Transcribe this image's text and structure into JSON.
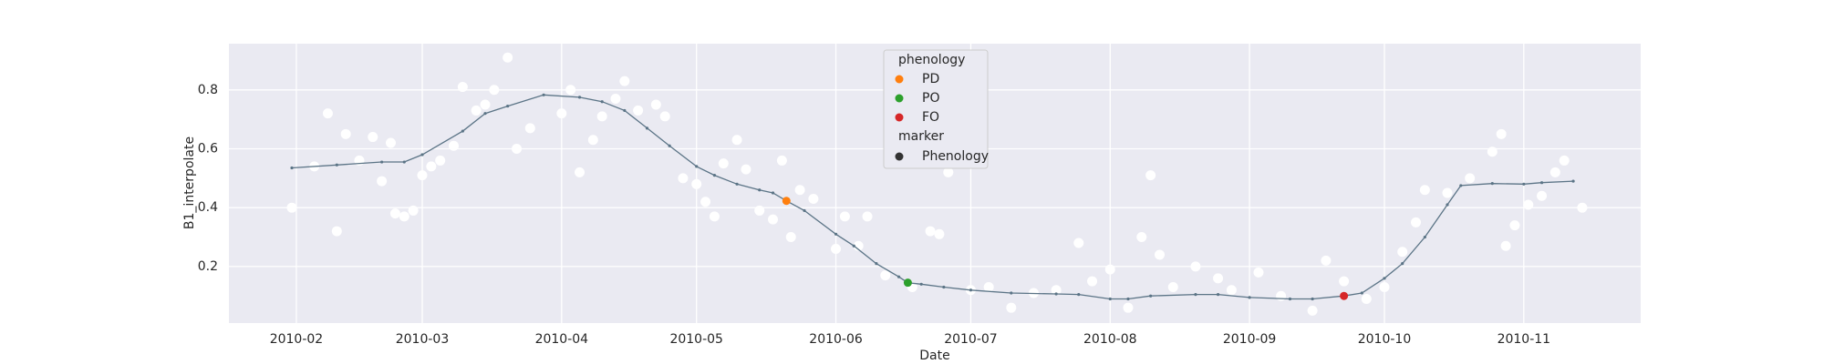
{
  "chart_data": {
    "type": "scatter",
    "xlabel": "Date",
    "ylabel": "B1_interpolate",
    "xlim": [
      "2010-01-17",
      "2010-11-27"
    ],
    "ylim": [
      0.008,
      0.957
    ],
    "xticks": [
      "2010-02",
      "2010-03",
      "2010-04",
      "2010-05",
      "2010-06",
      "2010-07",
      "2010-08",
      "2010-09",
      "2010-10",
      "2010-11"
    ],
    "yticks": [
      0.2,
      0.4,
      0.6,
      0.8
    ],
    "grid": true,
    "legend": {
      "title": "phenology",
      "marker_title": "marker",
      "marker_label": "Phenology",
      "marker_color": "#333333"
    },
    "series": [
      {
        "kind": "scatter",
        "color": "#ffffff",
        "x": [
          "2010-01-31",
          "2010-02-05",
          "2010-02-08",
          "2010-02-10",
          "2010-02-12",
          "2010-02-15",
          "2010-02-18",
          "2010-02-20",
          "2010-02-22",
          "2010-02-23",
          "2010-02-25",
          "2010-02-27",
          "2010-03-01",
          "2010-03-03",
          "2010-03-05",
          "2010-03-08",
          "2010-03-10",
          "2010-03-13",
          "2010-03-15",
          "2010-03-17",
          "2010-03-20",
          "2010-03-22",
          "2010-03-25",
          "2010-04-01",
          "2010-04-03",
          "2010-04-05",
          "2010-04-08",
          "2010-04-10",
          "2010-04-13",
          "2010-04-15",
          "2010-04-18",
          "2010-04-22",
          "2010-04-24",
          "2010-04-28",
          "2010-05-01",
          "2010-05-03",
          "2010-05-05",
          "2010-05-07",
          "2010-05-10",
          "2010-05-12",
          "2010-05-15",
          "2010-05-18",
          "2010-05-20",
          "2010-05-22",
          "2010-05-24",
          "2010-05-27",
          "2010-06-01",
          "2010-06-03",
          "2010-06-06",
          "2010-06-08",
          "2010-06-12",
          "2010-06-18",
          "2010-06-22",
          "2010-06-24",
          "2010-06-26",
          "2010-07-01",
          "2010-07-05",
          "2010-07-10",
          "2010-07-15",
          "2010-07-20",
          "2010-07-25",
          "2010-07-28",
          "2010-08-01",
          "2010-08-05",
          "2010-08-08",
          "2010-08-10",
          "2010-08-12",
          "2010-08-15",
          "2010-08-20",
          "2010-08-25",
          "2010-08-28",
          "2010-09-03",
          "2010-09-08",
          "2010-09-15",
          "2010-09-18",
          "2010-09-22",
          "2010-09-27",
          "2010-10-01",
          "2010-10-05",
          "2010-10-08",
          "2010-10-10",
          "2010-10-15",
          "2010-10-20",
          "2010-10-25",
          "2010-10-27",
          "2010-10-28",
          "2010-10-30",
          "2010-11-02",
          "2010-11-05",
          "2010-11-08",
          "2010-11-10",
          "2010-11-14"
        ],
        "values": [
          0.4,
          0.54,
          0.72,
          0.32,
          0.65,
          0.56,
          0.64,
          0.49,
          0.62,
          0.38,
          0.37,
          0.39,
          0.51,
          0.54,
          0.56,
          0.61,
          0.81,
          0.73,
          0.75,
          0.8,
          0.91,
          0.6,
          0.67,
          0.72,
          0.8,
          0.52,
          0.63,
          0.71,
          0.77,
          0.83,
          0.73,
          0.75,
          0.71,
          0.5,
          0.48,
          0.42,
          0.37,
          0.55,
          0.63,
          0.53,
          0.39,
          0.36,
          0.56,
          0.3,
          0.46,
          0.43,
          0.26,
          0.37,
          0.27,
          0.37,
          0.17,
          0.13,
          0.32,
          0.31,
          0.52,
          0.12,
          0.13,
          0.06,
          0.11,
          0.12,
          0.28,
          0.15,
          0.19,
          0.06,
          0.3,
          0.51,
          0.24,
          0.13,
          0.2,
          0.16,
          0.12,
          0.18,
          0.1,
          0.05,
          0.22,
          0.15,
          0.09,
          0.13,
          0.25,
          0.35,
          0.46,
          0.45,
          0.5,
          0.59,
          0.65,
          0.27,
          0.34,
          0.41,
          0.44,
          0.52,
          0.56,
          0.4
        ]
      },
      {
        "kind": "line",
        "color": "#5b7486",
        "x": [
          "2010-01-31",
          "2010-02-10",
          "2010-02-20",
          "2010-02-25",
          "2010-03-01",
          "2010-03-10",
          "2010-03-15",
          "2010-03-20",
          "2010-03-28",
          "2010-04-05",
          "2010-04-10",
          "2010-04-15",
          "2010-04-20",
          "2010-04-25",
          "2010-05-01",
          "2010-05-05",
          "2010-05-10",
          "2010-05-15",
          "2010-05-18",
          "2010-05-21",
          "2010-05-25",
          "2010-06-01",
          "2010-06-05",
          "2010-06-10",
          "2010-06-15",
          "2010-06-17",
          "2010-06-20",
          "2010-06-25",
          "2010-07-01",
          "2010-07-10",
          "2010-07-20",
          "2010-07-25",
          "2010-08-01",
          "2010-08-05",
          "2010-08-10",
          "2010-08-20",
          "2010-08-25",
          "2010-09-01",
          "2010-09-10",
          "2010-09-15",
          "2010-09-22",
          "2010-09-26",
          "2010-10-01",
          "2010-10-05",
          "2010-10-10",
          "2010-10-15",
          "2010-10-18",
          "2010-10-25",
          "2010-11-01",
          "2010-11-05",
          "2010-11-12"
        ],
        "values": [
          0.535,
          0.545,
          0.555,
          0.555,
          0.58,
          0.66,
          0.72,
          0.745,
          0.783,
          0.775,
          0.76,
          0.73,
          0.67,
          0.61,
          0.54,
          0.51,
          0.48,
          0.46,
          0.45,
          0.423,
          0.39,
          0.31,
          0.27,
          0.21,
          0.165,
          0.145,
          0.14,
          0.13,
          0.12,
          0.11,
          0.107,
          0.105,
          0.09,
          0.09,
          0.1,
          0.105,
          0.105,
          0.095,
          0.09,
          0.09,
          0.1,
          0.11,
          0.16,
          0.21,
          0.3,
          0.41,
          0.475,
          0.482,
          0.48,
          0.485,
          0.49
        ]
      },
      {
        "kind": "scatter",
        "name": "PD",
        "color": "#ff7f0e",
        "x": [
          "2010-05-21"
        ],
        "values": [
          0.423
        ]
      },
      {
        "kind": "scatter",
        "name": "PO",
        "color": "#2ca02c",
        "x": [
          "2010-06-17"
        ],
        "values": [
          0.145
        ]
      },
      {
        "kind": "scatter",
        "name": "FO",
        "color": "#d62728",
        "x": [
          "2010-09-22"
        ],
        "values": [
          0.1
        ]
      }
    ]
  }
}
